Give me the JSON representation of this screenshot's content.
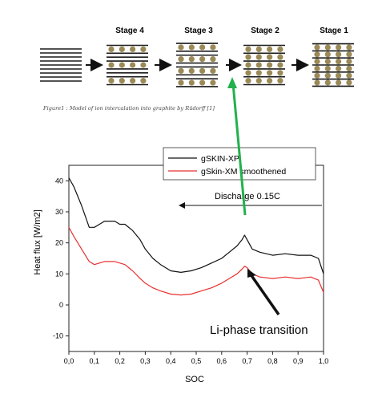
{
  "figure": {
    "stage_labels": [
      "Stage 4",
      "Stage 3",
      "Stage 2",
      "Stage 1"
    ],
    "caption": "Figure1 : Model of ion intercalation into graphite by Rüdorff [1]",
    "graphite_color": "#1a1a1a",
    "ion_color": "#9b8a57"
  },
  "annotations": {
    "discharge": "Discharge 0.15C",
    "transition": "Li-phase transition",
    "green_arrow_color": "#22b14c"
  },
  "chart_data": {
    "type": "line",
    "xlabel": "SOC",
    "ylabel": "Heat flux [W/m2]",
    "xlim": [
      0.0,
      1.0
    ],
    "ylim": [
      -15,
      45
    ],
    "xticks": [
      "0,0",
      "0,1",
      "0,2",
      "0,3",
      "0,4",
      "0,5",
      "0,6",
      "0,7",
      "0,8",
      "0,9",
      "1,0"
    ],
    "yticks": [
      "-10",
      "0",
      "10",
      "20",
      "30",
      "40"
    ],
    "legend_position": "top-right",
    "series": [
      {
        "name": "gSKIN-XP",
        "color": "#111111",
        "x": [
          0.0,
          0.02,
          0.05,
          0.08,
          0.1,
          0.12,
          0.14,
          0.16,
          0.18,
          0.2,
          0.22,
          0.25,
          0.28,
          0.3,
          0.33,
          0.36,
          0.4,
          0.44,
          0.48,
          0.52,
          0.56,
          0.6,
          0.63,
          0.66,
          0.68,
          0.69,
          0.7,
          0.72,
          0.75,
          0.8,
          0.85,
          0.9,
          0.95,
          0.98,
          1.0
        ],
        "y": [
          41,
          38,
          32,
          25,
          25,
          26,
          27,
          27,
          27,
          26,
          26,
          24,
          21,
          18,
          15,
          13,
          11,
          10.5,
          11,
          12,
          13.5,
          15,
          17,
          19,
          21,
          22.5,
          21,
          18,
          17,
          16,
          16.5,
          16,
          16,
          15,
          10
        ]
      },
      {
        "name": "gSkin-XM smoothened",
        "color": "#e83030",
        "x": [
          0.0,
          0.02,
          0.05,
          0.08,
          0.1,
          0.12,
          0.14,
          0.16,
          0.18,
          0.2,
          0.22,
          0.25,
          0.28,
          0.3,
          0.33,
          0.36,
          0.4,
          0.44,
          0.48,
          0.52,
          0.56,
          0.6,
          0.63,
          0.66,
          0.68,
          0.69,
          0.7,
          0.72,
          0.75,
          0.8,
          0.85,
          0.9,
          0.95,
          0.98,
          1.0
        ],
        "y": [
          25,
          22,
          18,
          14,
          13,
          13.5,
          14,
          14,
          14,
          13.5,
          13,
          11,
          8.5,
          7,
          5.5,
          4.5,
          3.5,
          3.2,
          3.5,
          4.5,
          5.5,
          7,
          8.5,
          10,
          11.5,
          12.5,
          12,
          10,
          9,
          8.5,
          9,
          8.5,
          9,
          8,
          4
        ]
      }
    ]
  }
}
